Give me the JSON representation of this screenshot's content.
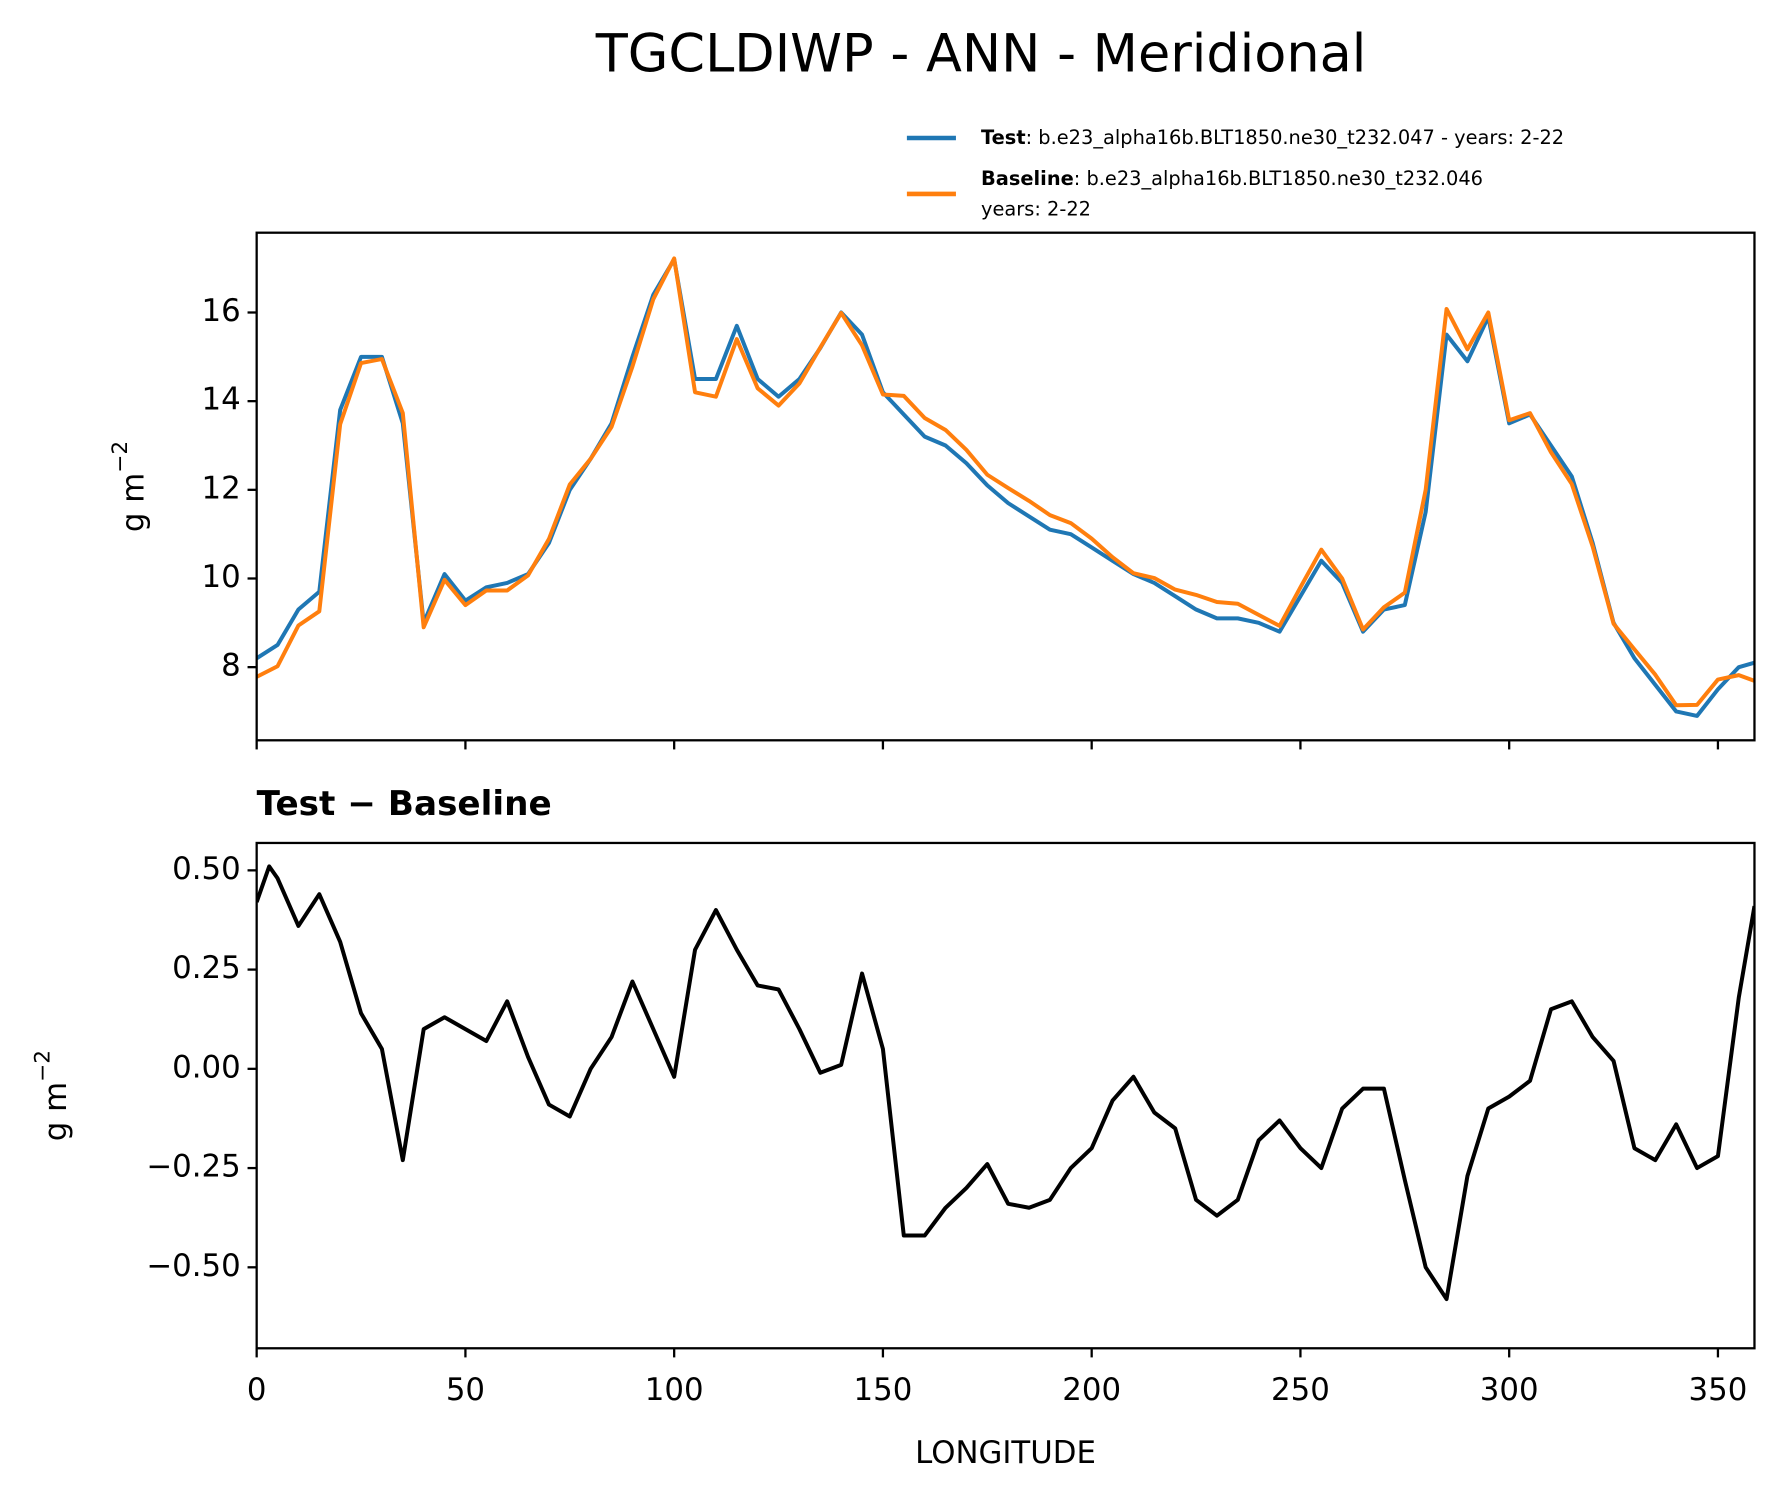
{
  "chart_data": [
    {
      "type": "line",
      "title": "TGCLDIWP - ANN - Meridional",
      "ylabel": "g m",
      "ylabel_exponent": "−2",
      "x": [
        0,
        5,
        10,
        15,
        20,
        25,
        30,
        35,
        40,
        45,
        50,
        55,
        60,
        65,
        70,
        75,
        80,
        85,
        90,
        95,
        100,
        105,
        110,
        115,
        120,
        125,
        130,
        135,
        140,
        145,
        150,
        155,
        160,
        165,
        170,
        175,
        180,
        185,
        190,
        195,
        200,
        205,
        210,
        215,
        220,
        225,
        230,
        235,
        240,
        245,
        250,
        255,
        260,
        265,
        270,
        275,
        280,
        285,
        290,
        295,
        300,
        305,
        310,
        315,
        320,
        325,
        330,
        335,
        340,
        345,
        350,
        355,
        358.75
      ],
      "series": [
        {
          "name": "Test",
          "description": ": b.e23_alpha16b.BLT1850.ne30_t232.047 - years: 2-22",
          "color": "#1f77b4",
          "values": [
            8.2,
            8.5,
            9.3,
            9.7,
            13.8,
            15.0,
            15.0,
            13.5,
            9.0,
            10.1,
            9.5,
            9.8,
            9.9,
            10.1,
            10.8,
            12.0,
            12.7,
            13.5,
            15.0,
            16.4,
            17.2,
            14.5,
            14.5,
            15.7,
            14.5,
            14.1,
            14.5,
            15.2,
            16.0,
            15.5,
            14.2,
            13.7,
            13.2,
            13.0,
            12.6,
            12.1,
            11.7,
            11.4,
            11.1,
            11.0,
            10.7,
            10.4,
            10.1,
            9.9,
            9.6,
            9.3,
            9.1,
            9.1,
            9.0,
            8.8,
            9.6,
            10.4,
            9.9,
            8.8,
            9.3,
            9.4,
            11.5,
            15.5,
            14.9,
            15.9,
            13.5,
            13.7,
            13.0,
            12.3,
            10.8,
            9.0,
            8.2,
            7.6,
            7.0,
            6.9,
            7.5,
            8.0,
            8.1
          ]
        },
        {
          "name": "Baseline",
          "description": ": b.e23_alpha16b.BLT1850.ne30_t232.046",
          "description_line2": "years: 2-22",
          "color": "#ff7f0e",
          "values": [
            7.78,
            8.02,
            8.94,
            9.26,
            13.48,
            14.86,
            14.95,
            13.73,
            8.9,
            9.97,
            9.4,
            9.73,
            9.73,
            10.07,
            10.89,
            12.12,
            12.7,
            13.42,
            14.78,
            16.3,
            17.22,
            14.2,
            14.1,
            15.4,
            14.29,
            13.9,
            14.4,
            15.21,
            15.99,
            15.26,
            14.15,
            14.12,
            13.62,
            13.35,
            12.9,
            12.34,
            12.04,
            11.75,
            11.43,
            11.25,
            10.9,
            10.48,
            10.12,
            10.01,
            9.75,
            9.63,
            9.47,
            9.43,
            9.18,
            8.93,
            9.8,
            10.65,
            10.0,
            8.85,
            9.35,
            9.68,
            12.0,
            16.08,
            15.17,
            16.0,
            13.57,
            13.73,
            12.85,
            12.13,
            10.72,
            8.98,
            8.4,
            7.83,
            7.14,
            7.15,
            7.72,
            7.82,
            7.69
          ]
        }
      ],
      "xlim": [
        0,
        358.75
      ],
      "xticks": [
        0,
        50,
        100,
        150,
        200,
        250,
        300,
        350
      ],
      "show_xtick_labels": false,
      "ylim": [
        6.35,
        17.8
      ],
      "yticks": [
        8,
        10,
        12,
        14,
        16
      ],
      "grid": false
    },
    {
      "type": "line",
      "subtitle": "Test − Baseline",
      "xlabel": "LONGITUDE",
      "ylabel": "g m",
      "ylabel_exponent": "−2",
      "x": [
        0,
        3,
        5,
        10,
        15,
        20,
        25,
        30,
        35,
        40,
        45,
        50,
        55,
        60,
        65,
        70,
        75,
        80,
        85,
        90,
        95,
        100,
        105,
        110,
        115,
        120,
        125,
        130,
        135,
        140,
        145,
        150,
        155,
        160,
        165,
        170,
        175,
        180,
        185,
        190,
        195,
        200,
        205,
        210,
        215,
        220,
        225,
        230,
        235,
        240,
        245,
        250,
        255,
        260,
        265,
        270,
        275,
        280,
        285,
        290,
        295,
        300,
        305,
        310,
        315,
        320,
        325,
        330,
        335,
        340,
        345,
        350,
        355,
        358.75
      ],
      "series": [
        {
          "name": "Test − Baseline",
          "color": "#000000",
          "values": [
            0.42,
            0.51,
            0.48,
            0.36,
            0.44,
            0.32,
            0.14,
            0.05,
            -0.23,
            0.1,
            0.13,
            0.1,
            0.07,
            0.17,
            0.03,
            -0.09,
            -0.12,
            0.0,
            0.08,
            0.22,
            0.1,
            -0.02,
            0.3,
            0.4,
            0.3,
            0.21,
            0.2,
            0.1,
            -0.01,
            0.01,
            0.24,
            0.05,
            -0.42,
            -0.42,
            -0.35,
            -0.3,
            -0.24,
            -0.34,
            -0.35,
            -0.33,
            -0.25,
            -0.2,
            -0.08,
            -0.02,
            -0.11,
            -0.15,
            -0.33,
            -0.37,
            -0.33,
            -0.18,
            -0.13,
            -0.2,
            -0.25,
            -0.1,
            -0.05,
            -0.05,
            -0.28,
            -0.5,
            -0.58,
            -0.27,
            -0.1,
            -0.07,
            -0.03,
            0.15,
            0.17,
            0.08,
            0.02,
            -0.2,
            -0.23,
            -0.14,
            -0.25,
            -0.22,
            0.18,
            0.41
          ]
        }
      ],
      "xlim": [
        0,
        358.75
      ],
      "xticks": [
        0,
        50,
        100,
        150,
        200,
        250,
        300,
        350
      ],
      "show_xtick_labels": true,
      "ylim": [
        -0.704,
        0.569
      ],
      "yticks": [
        {
          "value": -0.5,
          "label": "−0.50"
        },
        {
          "value": -0.25,
          "label": "−0.25"
        },
        {
          "value": 0,
          "label": "0.00"
        },
        {
          "value": 0.25,
          "label": "0.25"
        },
        {
          "value": 0.5,
          "label": "0.50"
        }
      ],
      "grid": false
    }
  ]
}
